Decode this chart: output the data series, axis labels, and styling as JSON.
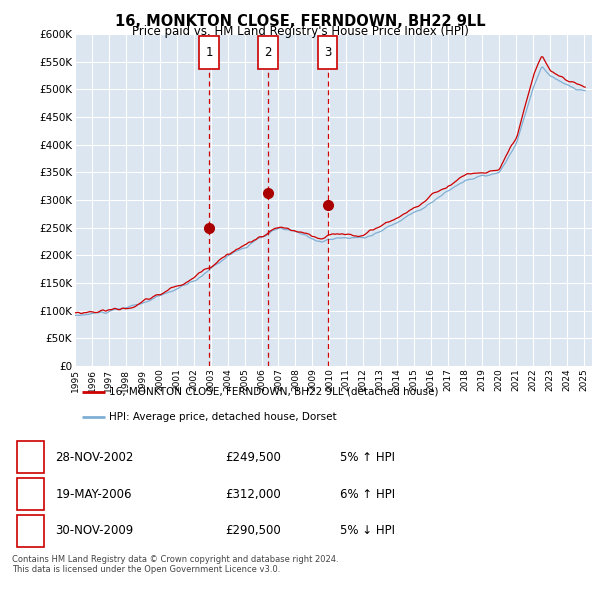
{
  "title": "16, MONKTON CLOSE, FERNDOWN, BH22 9LL",
  "subtitle": "Price paid vs. HM Land Registry's House Price Index (HPI)",
  "plot_bg_color": "#dce6f1",
  "ylim": [
    0,
    600000
  ],
  "yticks": [
    0,
    50000,
    100000,
    150000,
    200000,
    250000,
    300000,
    350000,
    400000,
    450000,
    500000,
    550000,
    600000
  ],
  "ytick_labels": [
    "£0",
    "£50K",
    "£100K",
    "£150K",
    "£200K",
    "£250K",
    "£300K",
    "£350K",
    "£400K",
    "£450K",
    "£500K",
    "£550K",
    "£600K"
  ],
  "legend_line1": "16, MONKTON CLOSE, FERNDOWN, BH22 9LL (detached house)",
  "legend_line2": "HPI: Average price, detached house, Dorset",
  "line1_color": "#cc0000",
  "line2_color": "#7fafd4",
  "transaction1": {
    "num": 1,
    "date": "28-NOV-2002",
    "price": "£249,500",
    "pct": "5%",
    "dir": "↑",
    "year": 2002.9
  },
  "transaction2": {
    "num": 2,
    "date": "19-MAY-2006",
    "price": "£312,000",
    "pct": "6%",
    "dir": "↑",
    "year": 2006.38
  },
  "transaction3": {
    "num": 3,
    "date": "30-NOV-2009",
    "price": "£290,500",
    "pct": "5%",
    "dir": "↓",
    "year": 2009.9
  },
  "footer": "Contains HM Land Registry data © Crown copyright and database right 2024.\nThis data is licensed under the Open Government Licence v3.0.",
  "t1_price": 249500,
  "t2_price": 312000,
  "t3_price": 290500
}
